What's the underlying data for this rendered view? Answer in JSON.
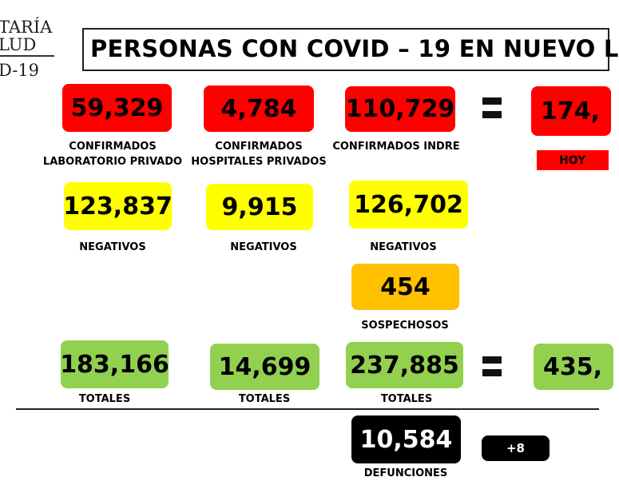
{
  "header": {
    "logo_lines": [
      "TARÍA",
      "LUD",
      "D-19"
    ],
    "title": "PERSONAS CON COVID – 19 EN NUEVO L"
  },
  "boxes": [
    {
      "value": "59,329",
      "label": [
        "CONFIRMADOS",
        "LABORATORIO PRIVADO"
      ],
      "color": "#ff0000"
    },
    {
      "value": "4,784",
      "label": [
        "CONFIRMADOS",
        "HOSPITALES PRIVADOS"
      ],
      "color": "#ff0000"
    },
    {
      "value": "110,729",
      "label": [
        "CONFIRMADOS INDRE"
      ],
      "color": "#ff0000"
    },
    {
      "value": "174,",
      "label": [
        "HOY"
      ],
      "color": "#ff0000"
    },
    {
      "value": "123,837",
      "label": [
        "NEGATIVOS"
      ],
      "color": "#ffff00"
    },
    {
      "value": "9,915",
      "label": [
        "NEGATIVOS"
      ],
      "color": "#ffff00"
    },
    {
      "value": "126,702",
      "label": [
        "NEGATIVOS"
      ],
      "color": "#ffff00"
    },
    {
      "value": "454",
      "label": [
        "SOSPECHOSOS"
      ],
      "color": "#ffc000"
    },
    {
      "value": "183,166",
      "label": [
        "TOTALES"
      ],
      "color": "#92d050"
    },
    {
      "value": "14,699",
      "label": [
        "TOTALES"
      ],
      "color": "#92d050"
    },
    {
      "value": "237,885",
      "label": [
        "TOTALES"
      ],
      "color": "#92d050"
    },
    {
      "value": "435,",
      "label": [],
      "color": "#92d050"
    },
    {
      "value": "10,584",
      "label": [
        "DEFUNCIONES"
      ],
      "color": "#000000"
    },
    {
      "value": "+8",
      "label": [],
      "color": "#000000"
    }
  ]
}
